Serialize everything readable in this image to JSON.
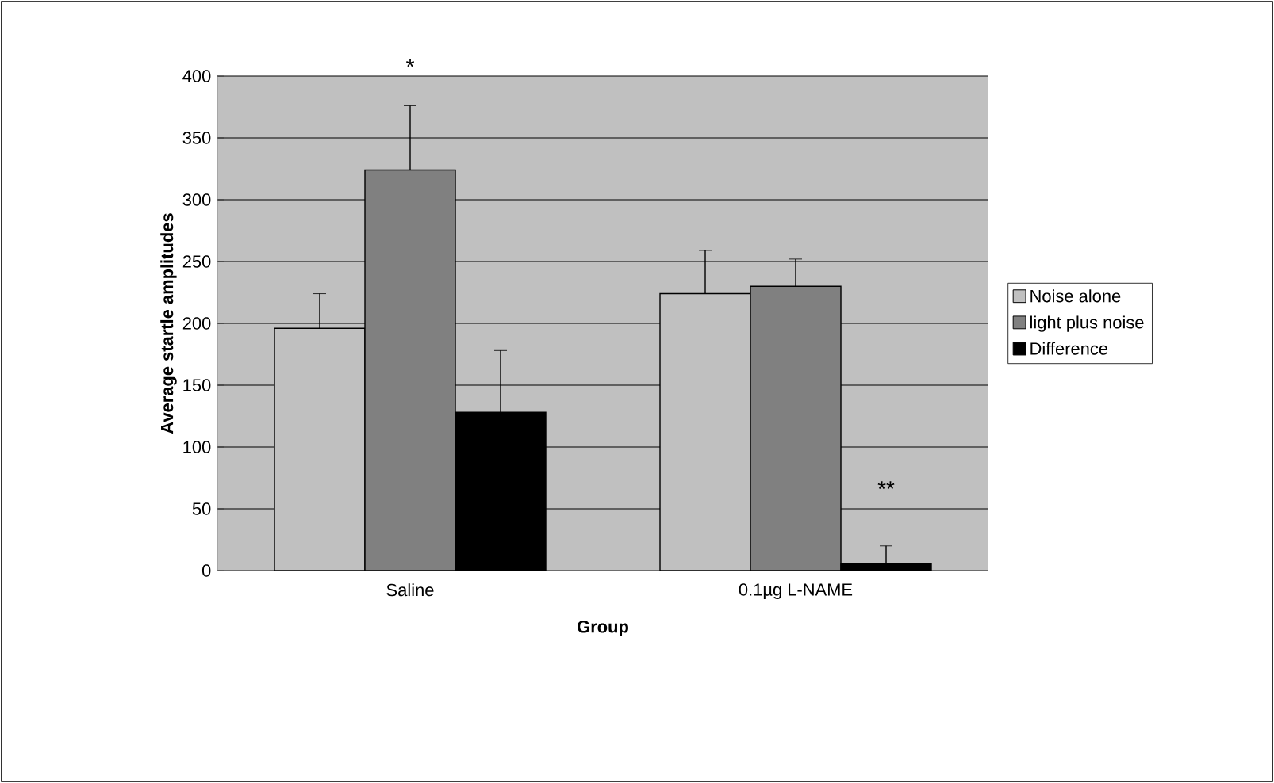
{
  "chart_data": {
    "type": "bar",
    "xlabel": "Group",
    "ylabel": "Average startle amplitudes",
    "categories": [
      "Saline",
      "0.1µg L-NAME"
    ],
    "series": [
      {
        "name": "Noise alone",
        "color": "#c0c0c0",
        "values": [
          196,
          224
        ],
        "errors": [
          28,
          35
        ]
      },
      {
        "name": "light plus noise",
        "color": "#808080",
        "values": [
          324,
          230
        ],
        "errors": [
          52,
          22
        ]
      },
      {
        "name": "Difference",
        "color": "#000000",
        "values": [
          128,
          6
        ],
        "errors": [
          50,
          14
        ]
      }
    ],
    "ylim": [
      0,
      400
    ],
    "yticks": [
      0,
      50,
      100,
      150,
      200,
      250,
      300,
      350,
      400
    ],
    "grid": "y",
    "legend": "right",
    "annotations": [
      "*",
      "**"
    ]
  }
}
